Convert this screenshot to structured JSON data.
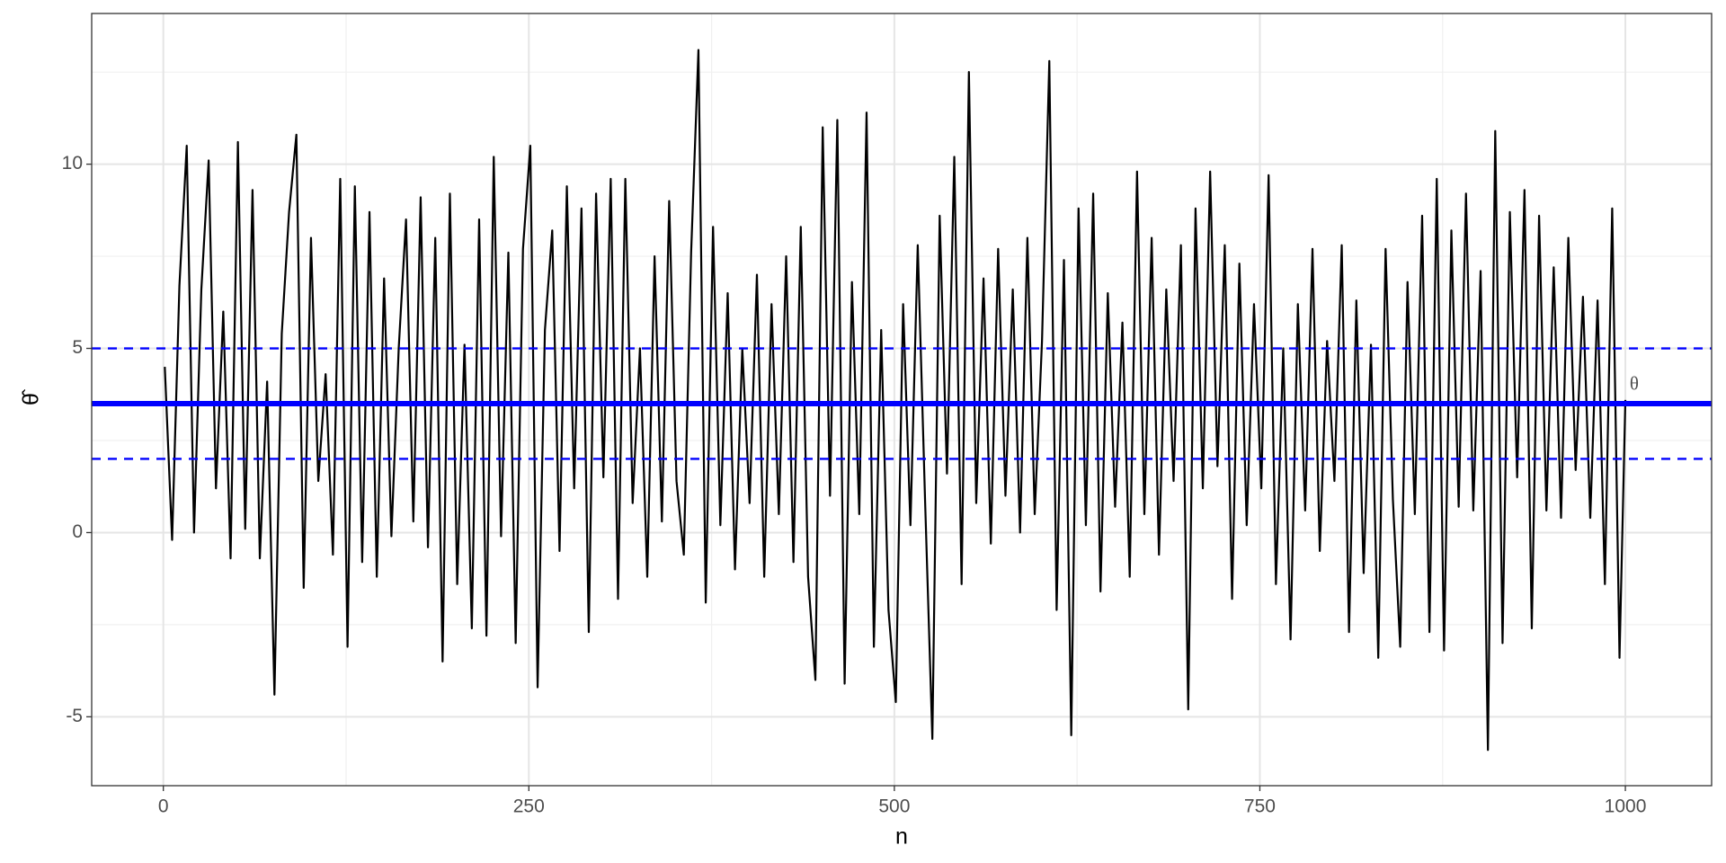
{
  "chart_data": {
    "type": "line",
    "x_label": "n",
    "y_label": "θ̂",
    "color": "#000000",
    "xlim": [
      -49,
      1059
    ],
    "ylim": [
      -6.87,
      14.09
    ],
    "xticks": [
      0,
      250,
      500,
      750,
      1000
    ],
    "yticks": [
      -5,
      0,
      5,
      10
    ],
    "x_minor_grid": [
      125,
      375,
      625,
      875
    ],
    "y_minor_grid": [
      -2.5,
      2.5,
      7.5,
      12.5
    ],
    "grid": true,
    "hlines": [
      {
        "value": 3.5,
        "style": "solid",
        "color": "#0000ff"
      },
      {
        "value": 5,
        "style": "dashed",
        "color": "#0000ff"
      },
      {
        "value": 2,
        "style": "dashed",
        "color": "#0000ff"
      }
    ],
    "annotations": [
      {
        "text": "θ",
        "x": 1003,
        "y": 4,
        "color": "#0000ff"
      }
    ],
    "x": [
      1,
      6,
      11,
      16,
      21,
      26,
      31,
      36,
      41,
      46,
      51,
      56,
      61,
      66,
      71,
      76,
      81,
      86,
      91,
      96,
      101,
      106,
      111,
      116,
      121,
      126,
      131,
      136,
      141,
      146,
      151,
      156,
      161,
      166,
      171,
      176,
      181,
      186,
      191,
      196,
      201,
      206,
      211,
      216,
      221,
      226,
      231,
      236,
      241,
      246,
      251,
      256,
      261,
      266,
      271,
      276,
      281,
      286,
      291,
      296,
      301,
      306,
      311,
      316,
      321,
      326,
      331,
      336,
      341,
      346,
      351,
      356,
      361,
      366,
      371,
      376,
      381,
      386,
      391,
      396,
      401,
      406,
      411,
      416,
      421,
      426,
      431,
      436,
      441,
      446,
      451,
      456,
      461,
      466,
      471,
      476,
      481,
      486,
      491,
      496,
      501,
      506,
      511,
      516,
      521,
      526,
      531,
      536,
      541,
      546,
      551,
      556,
      561,
      566,
      571,
      576,
      581,
      586,
      591,
      596,
      601,
      606,
      611,
      616,
      621,
      626,
      631,
      636,
      641,
      646,
      651,
      656,
      661,
      666,
      671,
      676,
      681,
      686,
      691,
      696,
      701,
      706,
      711,
      716,
      721,
      726,
      731,
      736,
      741,
      746,
      751,
      756,
      761,
      766,
      771,
      776,
      781,
      786,
      791,
      796,
      801,
      806,
      811,
      816,
      821,
      826,
      831,
      836,
      841,
      846,
      851,
      856,
      861,
      866,
      871,
      876,
      881,
      886,
      891,
      896,
      901,
      906,
      911,
      916,
      921,
      926,
      931,
      936,
      941,
      946,
      951,
      956,
      961,
      966,
      971,
      976,
      981,
      986,
      991,
      996,
      1000
    ],
    "values": [
      4.5,
      -0.2,
      6.7,
      10.5,
      0.0,
      6.6,
      10.1,
      1.2,
      6.0,
      -0.7,
      10.6,
      0.1,
      9.3,
      -0.7,
      4.1,
      -4.4,
      5.4,
      8.7,
      10.8,
      -1.5,
      8.0,
      1.4,
      4.3,
      -0.6,
      9.6,
      -3.1,
      9.4,
      -0.8,
      8.7,
      -1.2,
      6.9,
      -0.1,
      5.0,
      8.5,
      0.3,
      9.1,
      -0.4,
      8.0,
      -3.5,
      9.2,
      -1.4,
      5.1,
      -2.6,
      8.5,
      -2.8,
      10.2,
      -0.1,
      7.6,
      -3.0,
      7.7,
      10.5,
      -4.2,
      5.5,
      8.2,
      -0.5,
      9.4,
      1.2,
      8.8,
      -2.7,
      9.2,
      1.5,
      9.6,
      -1.8,
      9.6,
      0.8,
      5.0,
      -1.2,
      7.5,
      0.3,
      9.0,
      1.4,
      -0.6,
      7.6,
      13.1,
      -1.9,
      8.3,
      0.2,
      6.5,
      -1.0,
      5.0,
      0.8,
      7.0,
      -1.2,
      6.2,
      0.5,
      7.5,
      -0.8,
      8.3,
      -1.2,
      -4.0,
      11.0,
      1.0,
      11.2,
      -4.1,
      6.8,
      0.5,
      11.4,
      -3.1,
      5.5,
      -2.1,
      -4.6,
      6.2,
      0.2,
      7.8,
      0.9,
      -5.6,
      8.6,
      1.6,
      10.2,
      -1.4,
      12.5,
      0.8,
      6.9,
      -0.3,
      7.7,
      1.0,
      6.6,
      0.0,
      8.0,
      0.5,
      5.2,
      12.8,
      -2.1,
      7.4,
      -5.5,
      8.8,
      0.2,
      9.2,
      -1.6,
      6.5,
      0.7,
      5.7,
      -1.2,
      9.8,
      0.5,
      8.0,
      -0.6,
      6.6,
      1.4,
      7.8,
      -4.8,
      8.8,
      1.2,
      9.8,
      1.8,
      7.8,
      -1.8,
      7.3,
      0.2,
      6.2,
      1.2,
      9.7,
      -1.4,
      5.0,
      -2.9,
      6.2,
      0.6,
      7.7,
      -0.5,
      5.2,
      1.4,
      7.8,
      -2.7,
      6.3,
      -1.1,
      5.1,
      -3.4,
      7.7,
      0.9,
      -3.1,
      6.8,
      0.5,
      8.6,
      -2.7,
      9.6,
      -3.2,
      8.2,
      0.7,
      9.2,
      0.6,
      7.1,
      -5.9,
      10.9,
      -3.0,
      8.7,
      1.5,
      9.3,
      -2.6,
      8.6,
      0.6,
      7.2,
      0.4,
      8.0,
      1.7,
      6.4,
      0.4,
      6.3,
      -1.4,
      8.8,
      -3.4,
      3.6
    ]
  }
}
